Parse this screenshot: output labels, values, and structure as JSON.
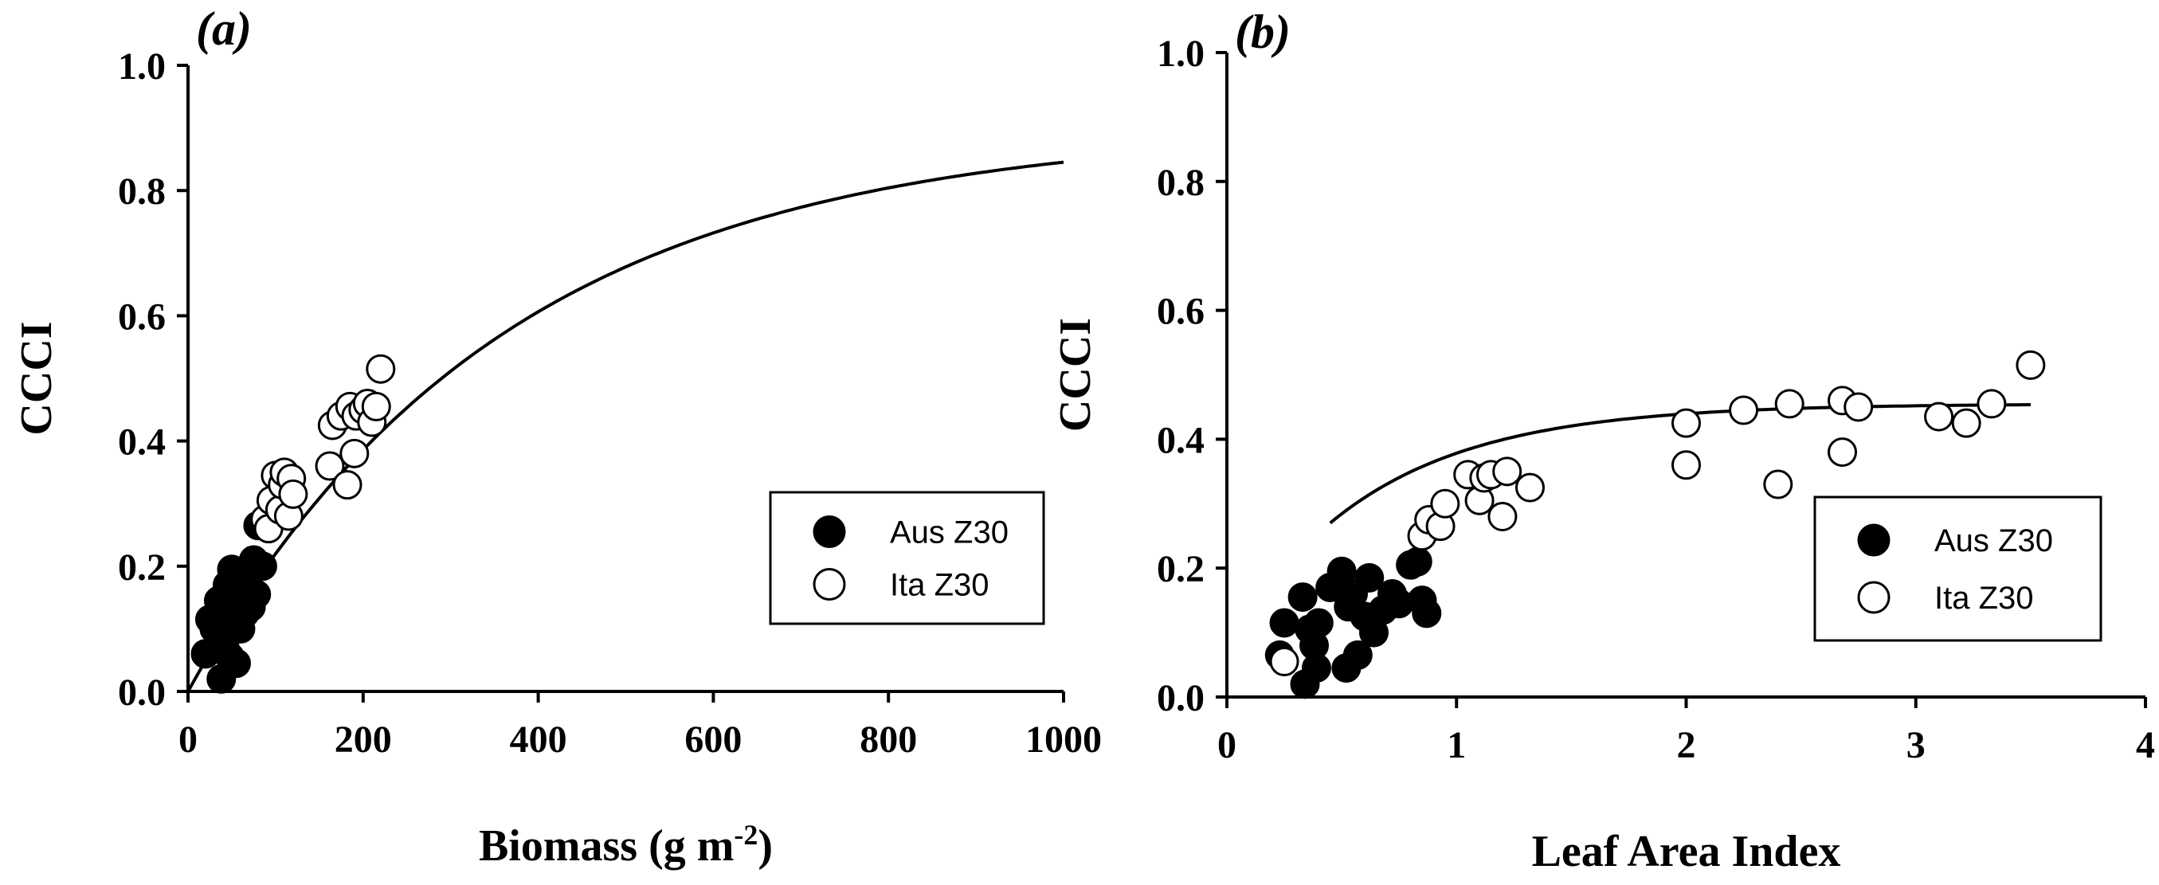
{
  "chart_data": [
    {
      "type": "scatter",
      "panel_label": "(a)",
      "xlabel": "Biomass (g m",
      "xlabel_sup": "-2",
      "xlabel_suffix": ")",
      "ylabel": "CCCI",
      "xlim": [
        0,
        1000
      ],
      "ylim": [
        0,
        1.0
      ],
      "xticks": [
        0,
        200,
        400,
        600,
        800,
        1000
      ],
      "yticks": [
        0.0,
        0.2,
        0.4,
        0.6,
        0.8,
        1.0
      ],
      "xtick_labels": [
        "0",
        "200",
        "400",
        "600",
        "800",
        "1000"
      ],
      "ytick_labels": [
        "0.0",
        "0.2",
        "0.4",
        "0.6",
        "0.8",
        "1.0"
      ],
      "legend_position": "center-right",
      "series": [
        {
          "name": "Aus Z30",
          "marker": "filled-circle",
          "points": [
            [
              20,
              0.06
            ],
            [
              25,
              0.115
            ],
            [
              30,
              0.1
            ],
            [
              35,
              0.145
            ],
            [
              38,
              0.02
            ],
            [
              40,
              0.125
            ],
            [
              42,
              0.07
            ],
            [
              45,
              0.17
            ],
            [
              48,
              0.055
            ],
            [
              50,
              0.195
            ],
            [
              52,
              0.11
            ],
            [
              55,
              0.045
            ],
            [
              56,
              0.16
            ],
            [
              58,
              0.14
            ],
            [
              60,
              0.1
            ],
            [
              62,
              0.18
            ],
            [
              65,
              0.125
            ],
            [
              68,
              0.185
            ],
            [
              70,
              0.15
            ],
            [
              72,
              0.135
            ],
            [
              75,
              0.21
            ],
            [
              78,
              0.155
            ],
            [
              80,
              0.265
            ],
            [
              85,
              0.2
            ]
          ]
        },
        {
          "name": "Ita Z30",
          "marker": "open-circle",
          "points": [
            [
              88,
              0.275
            ],
            [
              92,
              0.26
            ],
            [
              95,
              0.305
            ],
            [
              100,
              0.345
            ],
            [
              105,
              0.29
            ],
            [
              108,
              0.33
            ],
            [
              110,
              0.35
            ],
            [
              115,
              0.28
            ],
            [
              118,
              0.34
            ],
            [
              120,
              0.315
            ],
            [
              162,
              0.36
            ],
            [
              165,
              0.425
            ],
            [
              175,
              0.44
            ],
            [
              182,
              0.33
            ],
            [
              185,
              0.455
            ],
            [
              190,
              0.38
            ],
            [
              192,
              0.44
            ],
            [
              200,
              0.45
            ],
            [
              205,
              0.46
            ],
            [
              210,
              0.43
            ],
            [
              215,
              0.455
            ],
            [
              220,
              0.515
            ]
          ]
        }
      ],
      "fit": {
        "name": "fit",
        "type": "exponential-rise",
        "a": 0.9,
        "k": 0.0028,
        "c": 0.0,
        "x_range": [
          0,
          1000
        ]
      }
    },
    {
      "type": "scatter",
      "panel_label": "(b)",
      "xlabel": "Leaf Area Index",
      "ylabel": "CCCI",
      "xlim": [
        0,
        4
      ],
      "ylim": [
        0,
        1.0
      ],
      "xticks": [
        0,
        1,
        2,
        3,
        4
      ],
      "yticks": [
        0.0,
        0.2,
        0.4,
        0.6,
        0.8,
        1.0
      ],
      "xtick_labels": [
        "0",
        "1",
        "2",
        "3",
        "4"
      ],
      "ytick_labels": [
        "0.0",
        "0.2",
        "0.4",
        "0.6",
        "0.8",
        "1.0"
      ],
      "legend_position": "center-right",
      "series": [
        {
          "name": "Aus Z30",
          "marker": "filled-circle",
          "points": [
            [
              0.23,
              0.065
            ],
            [
              0.25,
              0.115
            ],
            [
              0.33,
              0.155
            ],
            [
              0.34,
              0.02
            ],
            [
              0.36,
              0.105
            ],
            [
              0.38,
              0.08
            ],
            [
              0.39,
              0.045
            ],
            [
              0.4,
              0.115
            ],
            [
              0.45,
              0.17
            ],
            [
              0.5,
              0.195
            ],
            [
              0.52,
              0.045
            ],
            [
              0.53,
              0.14
            ],
            [
              0.55,
              0.16
            ],
            [
              0.57,
              0.065
            ],
            [
              0.6,
              0.125
            ],
            [
              0.62,
              0.185
            ],
            [
              0.64,
              0.1
            ],
            [
              0.68,
              0.135
            ],
            [
              0.72,
              0.16
            ],
            [
              0.75,
              0.145
            ],
            [
              0.8,
              0.205
            ],
            [
              0.83,
              0.21
            ],
            [
              0.85,
              0.15
            ],
            [
              0.87,
              0.13
            ],
            [
              0.9,
              0.265
            ]
          ]
        },
        {
          "name": "Ita Z30",
          "marker": "open-circle",
          "points": [
            [
              0.25,
              0.055
            ],
            [
              0.85,
              0.25
            ],
            [
              0.88,
              0.275
            ],
            [
              0.93,
              0.265
            ],
            [
              0.95,
              0.3
            ],
            [
              1.05,
              0.345
            ],
            [
              1.1,
              0.305
            ],
            [
              1.12,
              0.34
            ],
            [
              1.15,
              0.345
            ],
            [
              1.2,
              0.28
            ],
            [
              1.22,
              0.35
            ],
            [
              1.32,
              0.325
            ],
            [
              2.0,
              0.36
            ],
            [
              2.0,
              0.425
            ],
            [
              2.25,
              0.445
            ],
            [
              2.4,
              0.33
            ],
            [
              2.45,
              0.455
            ],
            [
              2.68,
              0.38
            ],
            [
              2.68,
              0.46
            ],
            [
              2.75,
              0.45
            ],
            [
              3.1,
              0.435
            ],
            [
              3.22,
              0.425
            ],
            [
              3.33,
              0.455
            ],
            [
              3.5,
              0.515
            ]
          ]
        }
      ],
      "fit": {
        "name": "fit",
        "type": "exponential-rise",
        "a": 0.455,
        "k": 1.6,
        "c": 0.27,
        "x_range": [
          0.45,
          3.5
        ]
      }
    }
  ]
}
